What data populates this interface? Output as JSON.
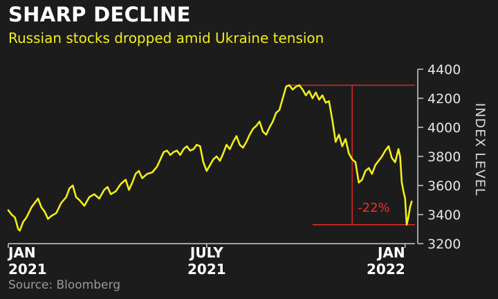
{
  "chart_data": {
    "type": "line",
    "title": "SHARP DECLINE",
    "subtitle": "Russian stocks dropped amid Ukraine tension",
    "ylabel": "INDEX LEVEL",
    "source": "Source: Bloomberg",
    "ylim": [
      3200,
      4400
    ],
    "yticks": [
      3200,
      3400,
      3600,
      3800,
      4000,
      4200,
      4400
    ],
    "ytick_labels": [
      "3200",
      "3400",
      "3600",
      "3800",
      "4000",
      "4200",
      "4400"
    ],
    "xticks": [
      {
        "x": 0,
        "line1": "JAN",
        "line2": "2021",
        "align": "start"
      },
      {
        "x": 6,
        "line1": "JULY",
        "line2": "2021",
        "align": "middle"
      },
      {
        "x": 12,
        "line1": "JAN",
        "line2": "2022",
        "align": "end"
      }
    ],
    "xlim": [
      0,
      12.3
    ],
    "series": [
      {
        "color": "#f2ee1a",
        "points": [
          [
            0.0,
            3430
          ],
          [
            0.1,
            3400
          ],
          [
            0.2,
            3380
          ],
          [
            0.3,
            3300
          ],
          [
            0.35,
            3290
          ],
          [
            0.45,
            3350
          ],
          [
            0.55,
            3380
          ],
          [
            0.7,
            3450
          ],
          [
            0.8,
            3480
          ],
          [
            0.9,
            3510
          ],
          [
            1.0,
            3450
          ],
          [
            1.1,
            3420
          ],
          [
            1.2,
            3370
          ],
          [
            1.3,
            3390
          ],
          [
            1.45,
            3410
          ],
          [
            1.6,
            3480
          ],
          [
            1.75,
            3520
          ],
          [
            1.85,
            3580
          ],
          [
            1.95,
            3600
          ],
          [
            2.05,
            3520
          ],
          [
            2.15,
            3500
          ],
          [
            2.3,
            3460
          ],
          [
            2.45,
            3520
          ],
          [
            2.6,
            3540
          ],
          [
            2.75,
            3510
          ],
          [
            2.9,
            3570
          ],
          [
            3.0,
            3590
          ],
          [
            3.1,
            3540
          ],
          [
            3.25,
            3560
          ],
          [
            3.4,
            3610
          ],
          [
            3.55,
            3640
          ],
          [
            3.65,
            3570
          ],
          [
            3.75,
            3620
          ],
          [
            3.85,
            3680
          ],
          [
            3.95,
            3700
          ],
          [
            4.05,
            3650
          ],
          [
            4.2,
            3680
          ],
          [
            4.35,
            3690
          ],
          [
            4.5,
            3730
          ],
          [
            4.6,
            3780
          ],
          [
            4.7,
            3830
          ],
          [
            4.8,
            3840
          ],
          [
            4.9,
            3810
          ],
          [
            5.0,
            3830
          ],
          [
            5.1,
            3840
          ],
          [
            5.2,
            3810
          ],
          [
            5.3,
            3850
          ],
          [
            5.4,
            3870
          ],
          [
            5.5,
            3840
          ],
          [
            5.6,
            3850
          ],
          [
            5.7,
            3880
          ],
          [
            5.8,
            3870
          ],
          [
            5.9,
            3760
          ],
          [
            6.0,
            3700
          ],
          [
            6.1,
            3740
          ],
          [
            6.2,
            3780
          ],
          [
            6.3,
            3800
          ],
          [
            6.4,
            3770
          ],
          [
            6.5,
            3820
          ],
          [
            6.6,
            3880
          ],
          [
            6.7,
            3850
          ],
          [
            6.8,
            3900
          ],
          [
            6.9,
            3940
          ],
          [
            7.0,
            3880
          ],
          [
            7.1,
            3860
          ],
          [
            7.2,
            3900
          ],
          [
            7.3,
            3950
          ],
          [
            7.4,
            3990
          ],
          [
            7.5,
            4010
          ],
          [
            7.6,
            4040
          ],
          [
            7.7,
            3970
          ],
          [
            7.8,
            3950
          ],
          [
            7.9,
            4000
          ],
          [
            8.0,
            4040
          ],
          [
            8.1,
            4100
          ],
          [
            8.2,
            4120
          ],
          [
            8.3,
            4200
          ],
          [
            8.4,
            4280
          ],
          [
            8.5,
            4290
          ],
          [
            8.6,
            4260
          ],
          [
            8.7,
            4280
          ],
          [
            8.8,
            4290
          ],
          [
            8.9,
            4260
          ],
          [
            9.0,
            4220
          ],
          [
            9.1,
            4250
          ],
          [
            9.2,
            4200
          ],
          [
            9.3,
            4240
          ],
          [
            9.4,
            4190
          ],
          [
            9.5,
            4220
          ],
          [
            9.6,
            4170
          ],
          [
            9.7,
            4180
          ],
          [
            9.8,
            4050
          ],
          [
            9.9,
            3900
          ],
          [
            10.0,
            3950
          ],
          [
            10.1,
            3870
          ],
          [
            10.2,
            3920
          ],
          [
            10.3,
            3820
          ],
          [
            10.4,
            3780
          ],
          [
            10.5,
            3760
          ],
          [
            10.6,
            3620
          ],
          [
            10.7,
            3640
          ],
          [
            10.8,
            3700
          ],
          [
            10.9,
            3720
          ],
          [
            11.0,
            3680
          ],
          [
            11.1,
            3740
          ],
          [
            11.2,
            3770
          ],
          [
            11.3,
            3800
          ],
          [
            11.4,
            3840
          ],
          [
            11.5,
            3870
          ],
          [
            11.6,
            3790
          ],
          [
            11.7,
            3760
          ],
          [
            11.8,
            3850
          ],
          [
            11.85,
            3800
          ],
          [
            11.9,
            3620
          ],
          [
            11.95,
            3560
          ],
          [
            12.0,
            3510
          ],
          [
            12.05,
            3330
          ],
          [
            12.1,
            3380
          ],
          [
            12.15,
            3450
          ],
          [
            12.2,
            3490
          ]
        ]
      }
    ],
    "annotation": {
      "label": "-22%",
      "color": "#ff2a2a",
      "peak": 4290,
      "trough": 3330,
      "x_start": 8.4,
      "x_end": 12.3,
      "x_vertical": 10.4
    }
  }
}
